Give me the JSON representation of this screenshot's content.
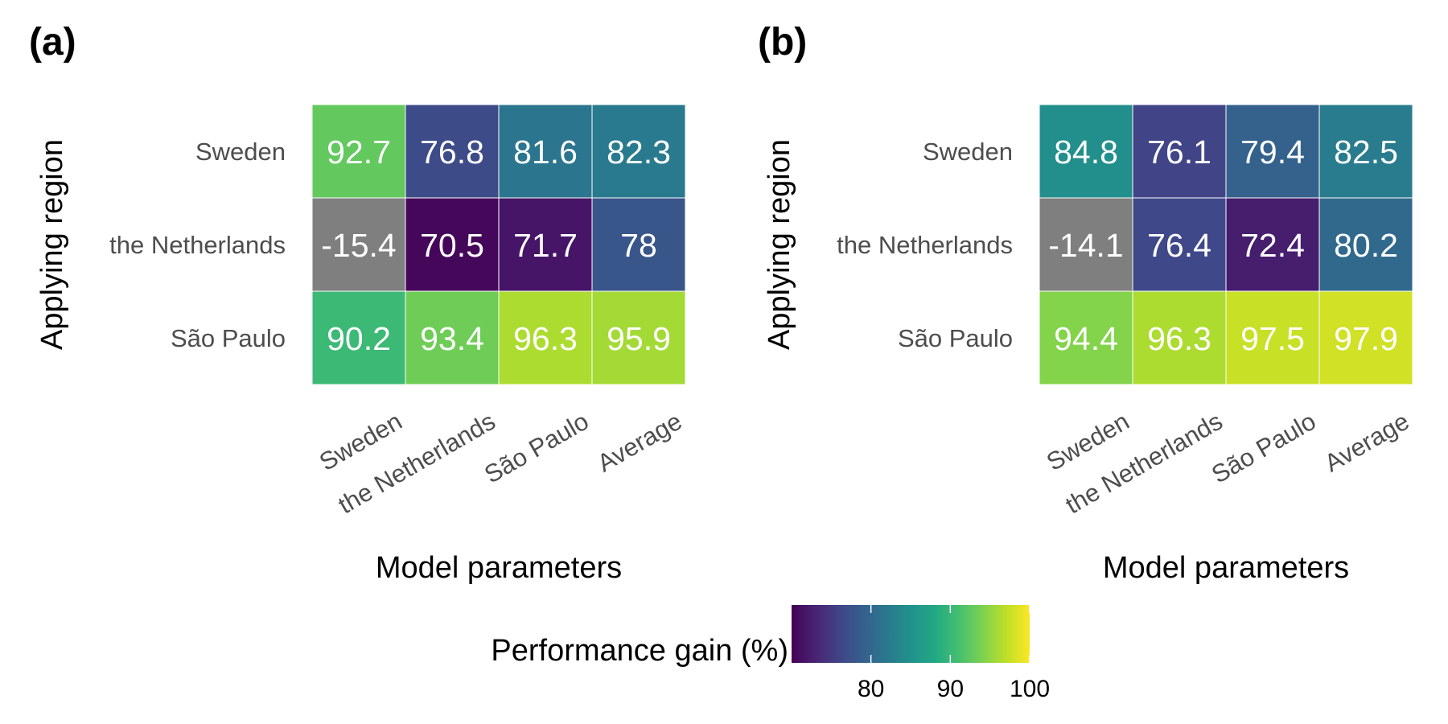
{
  "chart_data": [
    {
      "type": "heatmap",
      "panel_label": "(a)",
      "xlabel": "Model parameters",
      "ylabel": "Applying region",
      "x_categories": [
        "Sweden",
        "the Netherlands",
        "São Paulo",
        "Average"
      ],
      "y_categories": [
        "Sweden",
        "the Netherlands",
        "São Paulo"
      ],
      "cells": [
        [
          {
            "label": "92.7",
            "value": 92.7
          },
          {
            "label": "76.8",
            "value": 76.8
          },
          {
            "label": "81.6",
            "value": 81.6
          },
          {
            "label": "82.3",
            "value": 82.3
          }
        ],
        [
          {
            "label": "-15.4",
            "value": -15.4
          },
          {
            "label": "70.5",
            "value": 70.5
          },
          {
            "label": "71.7",
            "value": 71.7
          },
          {
            "label": "78",
            "value": 78
          }
        ],
        [
          {
            "label": "90.2",
            "value": 90.2
          },
          {
            "label": "93.4",
            "value": 93.4
          },
          {
            "label": "96.3",
            "value": 96.3
          },
          {
            "label": "95.9",
            "value": 95.9
          }
        ]
      ]
    },
    {
      "type": "heatmap",
      "panel_label": "(b)",
      "xlabel": "Model parameters",
      "ylabel": "Applying region",
      "x_categories": [
        "Sweden",
        "the Netherlands",
        "São Paulo",
        "Average"
      ],
      "y_categories": [
        "Sweden",
        "the Netherlands",
        "São Paulo"
      ],
      "cells": [
        [
          {
            "label": "84.8",
            "value": 84.8
          },
          {
            "label": "76.1",
            "value": 76.1
          },
          {
            "label": "79.4",
            "value": 79.4
          },
          {
            "label": "82.5",
            "value": 82.5
          }
        ],
        [
          {
            "label": "-14.1",
            "value": -14.1
          },
          {
            "label": "76.4",
            "value": 76.4
          },
          {
            "label": "72.4",
            "value": 72.4
          },
          {
            "label": "80.2",
            "value": 80.2
          }
        ],
        [
          {
            "label": "94.4",
            "value": 94.4
          },
          {
            "label": "96.3",
            "value": 96.3
          },
          {
            "label": "97.5",
            "value": 97.5
          },
          {
            "label": "97.9",
            "value": 97.9
          }
        ]
      ]
    }
  ],
  "legend": {
    "title": "Performance gain (%)",
    "range": [
      70,
      100
    ],
    "ticks": [
      {
        "label": "80",
        "value": 80
      },
      {
        "label": "90",
        "value": 90
      },
      {
        "label": "100",
        "value": 100
      }
    ],
    "colormap": "viridis",
    "out_of_range_color": "#7f7f7f"
  }
}
